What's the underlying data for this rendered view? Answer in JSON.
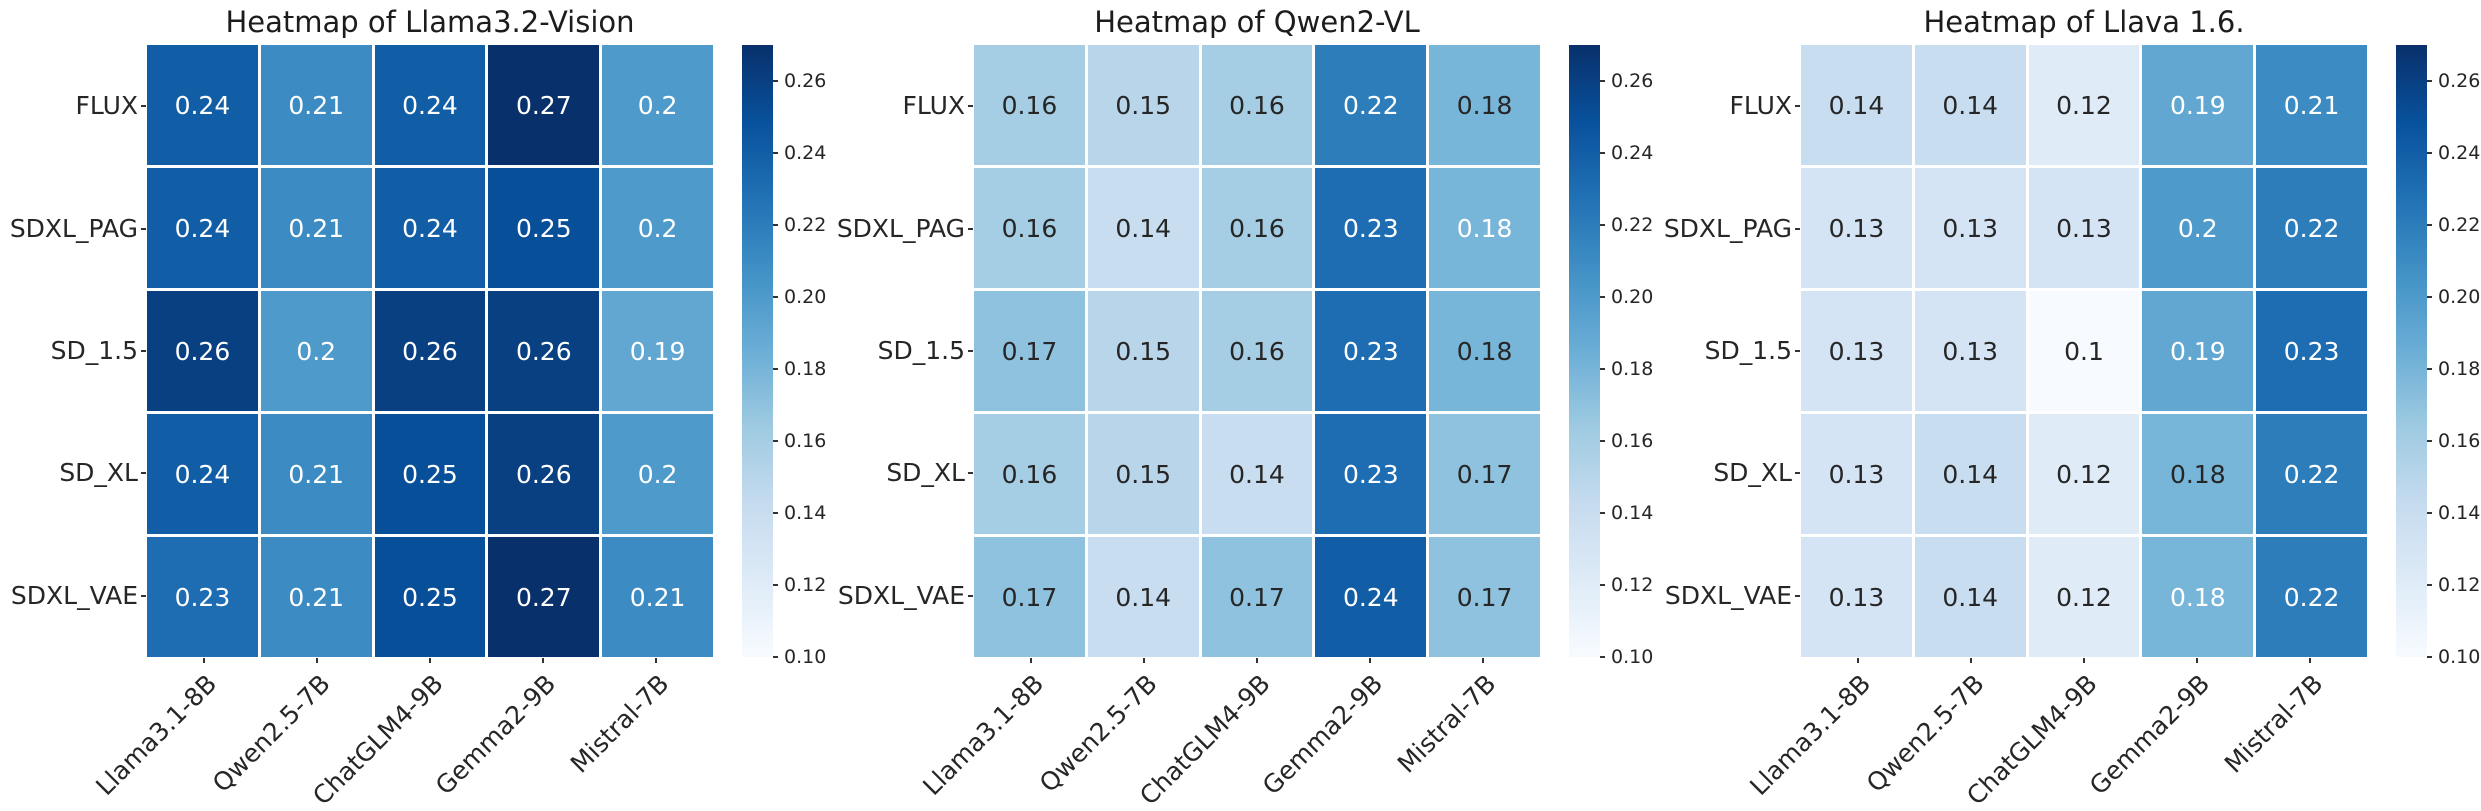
{
  "figure": {
    "background": "#ffffff",
    "title_color": "#1c1c1c",
    "tick_color": "#262626"
  },
  "style": {
    "colormap": "Blues",
    "colormap_anchors": [
      "#f7fbff",
      "#deebf7",
      "#c6dbef",
      "#9ecae1",
      "#6baed6",
      "#4292c6",
      "#2171b5",
      "#08519c",
      "#08306b"
    ],
    "annotation_dark": "#262626",
    "annotation_white": "#ffffff",
    "gridline_color": "#ffffff"
  },
  "chart_data": [
    {
      "type": "heatmap",
      "title": "Heatmap of Llama3.2-Vision",
      "rows": [
        "FLUX",
        "SDXL_PAG",
        "SD_1.5",
        "SD_XL",
        "SDXL_VAE"
      ],
      "columns": [
        "Llama3.1-8B",
        "Qwen2.5-7B",
        "ChatGLM4-9B",
        "Gemma2-9B",
        "Mistral-7B"
      ],
      "values": [
        [
          "0.24",
          "0.21",
          "0.24",
          "0.27",
          "0.2"
        ],
        [
          "0.24",
          "0.21",
          "0.24",
          "0.25",
          "0.2"
        ],
        [
          "0.26",
          "0.2",
          "0.26",
          "0.26",
          "0.19"
        ],
        [
          "0.24",
          "0.21",
          "0.25",
          "0.26",
          "0.2"
        ],
        [
          "0.23",
          "0.21",
          "0.25",
          "0.27",
          "0.21"
        ]
      ],
      "white_text": [
        [
          true,
          true,
          true,
          true,
          true
        ],
        [
          true,
          true,
          true,
          true,
          true
        ],
        [
          true,
          true,
          true,
          true,
          true
        ],
        [
          true,
          true,
          true,
          true,
          true
        ],
        [
          true,
          true,
          true,
          true,
          true
        ]
      ],
      "colorbar": {
        "vmin": 0.1,
        "vmax": 0.27,
        "tick_labels": [
          "0.26",
          "0.24",
          "0.22",
          "0.20",
          "0.18",
          "0.16",
          "0.14",
          "0.12",
          "0.10"
        ],
        "tick_values": [
          0.26,
          0.24,
          0.22,
          0.2,
          0.18,
          0.16,
          0.14,
          0.12,
          0.1
        ]
      }
    },
    {
      "type": "heatmap",
      "title": "Heatmap of Qwen2-VL",
      "rows": [
        "FLUX",
        "SDXL_PAG",
        "SD_1.5",
        "SD_XL",
        "SDXL_VAE"
      ],
      "columns": [
        "Llama3.1-8B",
        "Qwen2.5-7B",
        "ChatGLM4-9B",
        "Gemma2-9B",
        "Mistral-7B"
      ],
      "values": [
        [
          "0.16",
          "0.15",
          "0.16",
          "0.22",
          "0.18"
        ],
        [
          "0.16",
          "0.14",
          "0.16",
          "0.23",
          "0.18"
        ],
        [
          "0.17",
          "0.15",
          "0.16",
          "0.23",
          "0.18"
        ],
        [
          "0.16",
          "0.15",
          "0.14",
          "0.23",
          "0.17"
        ],
        [
          "0.17",
          "0.14",
          "0.17",
          "0.24",
          "0.17"
        ]
      ],
      "white_text": [
        [
          false,
          false,
          false,
          true,
          false
        ],
        [
          false,
          false,
          false,
          true,
          true
        ],
        [
          false,
          false,
          false,
          true,
          false
        ],
        [
          false,
          false,
          false,
          true,
          false
        ],
        [
          false,
          false,
          false,
          true,
          false
        ]
      ],
      "colorbar": {
        "vmin": 0.1,
        "vmax": 0.27,
        "tick_labels": [
          "0.26",
          "0.24",
          "0.22",
          "0.20",
          "0.18",
          "0.16",
          "0.14",
          "0.12",
          "0.10"
        ],
        "tick_values": [
          0.26,
          0.24,
          0.22,
          0.2,
          0.18,
          0.16,
          0.14,
          0.12,
          0.1
        ]
      }
    },
    {
      "type": "heatmap",
      "title": "Heatmap of Llava 1.6.",
      "rows": [
        "FLUX",
        "SDXL_PAG",
        "SD_1.5",
        "SD_XL",
        "SDXL_VAE"
      ],
      "columns": [
        "Llama3.1-8B",
        "Qwen2.5-7B",
        "ChatGLM4-9B",
        "Gemma2-9B",
        "Mistral-7B"
      ],
      "values": [
        [
          "0.14",
          "0.14",
          "0.12",
          "0.19",
          "0.21"
        ],
        [
          "0.13",
          "0.13",
          "0.13",
          "0.2",
          "0.22"
        ],
        [
          "0.13",
          "0.13",
          "0.1",
          "0.19",
          "0.23"
        ],
        [
          "0.13",
          "0.14",
          "0.12",
          "0.18",
          "0.22"
        ],
        [
          "0.13",
          "0.14",
          "0.12",
          "0.18",
          "0.22"
        ]
      ],
      "white_text": [
        [
          false,
          false,
          false,
          true,
          true
        ],
        [
          false,
          false,
          false,
          true,
          true
        ],
        [
          false,
          false,
          false,
          true,
          true
        ],
        [
          false,
          false,
          false,
          false,
          true
        ],
        [
          false,
          false,
          false,
          true,
          true
        ]
      ],
      "colorbar": {
        "vmin": 0.1,
        "vmax": 0.27,
        "tick_labels": [
          "0.26",
          "0.24",
          "0.22",
          "0.20",
          "0.18",
          "0.16",
          "0.14",
          "0.12",
          "0.10"
        ],
        "tick_values": [
          0.26,
          0.24,
          0.22,
          0.2,
          0.18,
          0.16,
          0.14,
          0.12,
          0.1
        ]
      }
    }
  ]
}
